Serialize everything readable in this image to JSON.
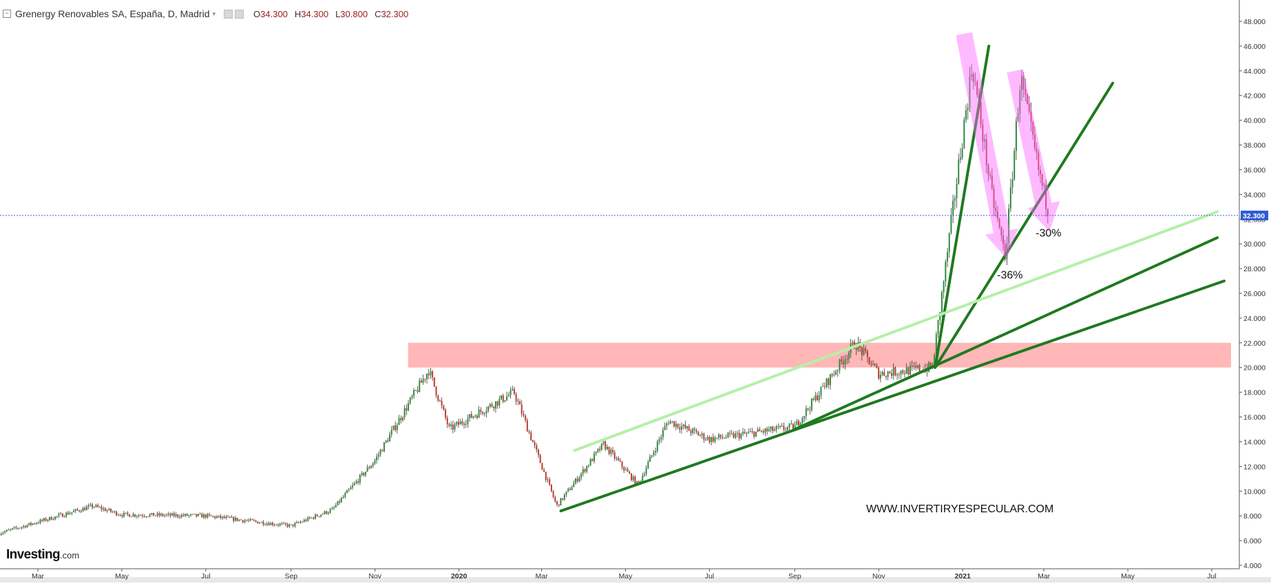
{
  "header": {
    "title": "Grenergy Renovables SA, España, D, Madrid",
    "ohlc": [
      {
        "key": "O",
        "value": "34.300"
      },
      {
        "key": "H",
        "value": "34.300"
      },
      {
        "key": "L",
        "value": "30.800"
      },
      {
        "key": "C",
        "value": "32.300"
      }
    ]
  },
  "logo": {
    "main": "Investing",
    "suffix": ".com"
  },
  "watermark": "WWW.INVERTIRYESPECULAR.COM",
  "chart_data": {
    "type": "candlestick",
    "x_ticks": [
      "Mar",
      "May",
      "Jul",
      "Sep",
      "Nov",
      "2020",
      "Mar",
      "May",
      "Jul",
      "Sep",
      "Nov",
      "2021",
      "Mar",
      "May",
      "Jul"
    ],
    "y_ticks": [
      "4.000",
      "6.000",
      "8.000",
      "10.000",
      "12.000",
      "14.000",
      "16.000",
      "18.000",
      "20.000",
      "22.000",
      "24.000",
      "26.000",
      "28.000",
      "30.000",
      "32.000",
      "34.000",
      "36.000",
      "38.000",
      "40.000",
      "42.000",
      "44.000",
      "46.000",
      "48.000"
    ],
    "ylim": [
      4,
      48
    ],
    "current_price": {
      "label": "32.300",
      "value": 32.3
    },
    "series_keypoints": [
      {
        "date": "2019-02-01",
        "price": 6.6
      },
      {
        "date": "2019-04-10",
        "price": 8.8
      },
      {
        "date": "2019-05-01",
        "price": 8.1
      },
      {
        "date": "2019-07-01",
        "price": 8.0
      },
      {
        "date": "2019-09-01",
        "price": 7.2
      },
      {
        "date": "2019-10-01",
        "price": 8.5
      },
      {
        "date": "2019-11-01",
        "price": 12.5
      },
      {
        "date": "2019-12-10",
        "price": 19.8
      },
      {
        "date": "2019-12-25",
        "price": 15.0
      },
      {
        "date": "2020-02-10",
        "price": 18.0
      },
      {
        "date": "2020-03-12",
        "price": 8.8
      },
      {
        "date": "2020-04-15",
        "price": 13.8
      },
      {
        "date": "2020-05-10",
        "price": 10.5
      },
      {
        "date": "2020-06-01",
        "price": 15.7
      },
      {
        "date": "2020-07-01",
        "price": 14.2
      },
      {
        "date": "2020-09-01",
        "price": 15.2
      },
      {
        "date": "2020-10-15",
        "price": 22.0
      },
      {
        "date": "2020-11-01",
        "price": 19.5
      },
      {
        "date": "2020-12-10",
        "price": 20.0
      },
      {
        "date": "2020-12-31",
        "price": 38.0
      },
      {
        "date": "2021-01-08",
        "price": 44.5
      },
      {
        "date": "2021-01-22",
        "price": 34.0
      },
      {
        "date": "2021-02-01",
        "price": 29.0
      },
      {
        "date": "2021-02-12",
        "price": 43.5
      },
      {
        "date": "2021-02-25",
        "price": 36.0
      },
      {
        "date": "2021-03-05",
        "price": 32.3
      }
    ],
    "resistance_zone": {
      "low": 20.0,
      "high": 22.0,
      "from": "2019-11-25",
      "to": "2021-07-15"
    },
    "trendlines": [
      {
        "color": "#1f7a1f",
        "from": {
          "date": "2020-03-15",
          "price": 8.4
        },
        "to": {
          "date": "2021-07-10",
          "price": 27.0
        }
      },
      {
        "color": "#1f7a1f",
        "from": {
          "date": "2020-09-01",
          "price": 15.0
        },
        "to": {
          "date": "2021-07-05",
          "price": 30.5
        }
      },
      {
        "color": "#1f7a1f",
        "from": {
          "date": "2020-12-12",
          "price": 20.0
        },
        "to": {
          "date": "2021-04-20",
          "price": 43.0
        }
      },
      {
        "color": "#1f7a1f",
        "from": {
          "date": "2020-12-12",
          "price": 20.0
        },
        "to": {
          "date": "2021-01-20",
          "price": 46.0
        }
      },
      {
        "color": "#b5f0a8",
        "from": {
          "date": "2020-03-25",
          "price": 13.3
        },
        "to": {
          "date": "2021-07-05",
          "price": 32.6
        }
      }
    ],
    "annotations": [
      {
        "text": "-36%",
        "date": "2021-02-05",
        "price": 27.2
      },
      {
        "text": "-30%",
        "date": "2021-03-05",
        "price": 30.6
      }
    ],
    "arrows": [
      {
        "from": {
          "date": "2021-01-02",
          "price": 47.0
        },
        "to": {
          "date": "2021-02-02",
          "price": 28.8
        }
      },
      {
        "from": {
          "date": "2021-02-08",
          "price": 44.0
        },
        "to": {
          "date": "2021-03-05",
          "price": 31.0
        }
      }
    ]
  }
}
